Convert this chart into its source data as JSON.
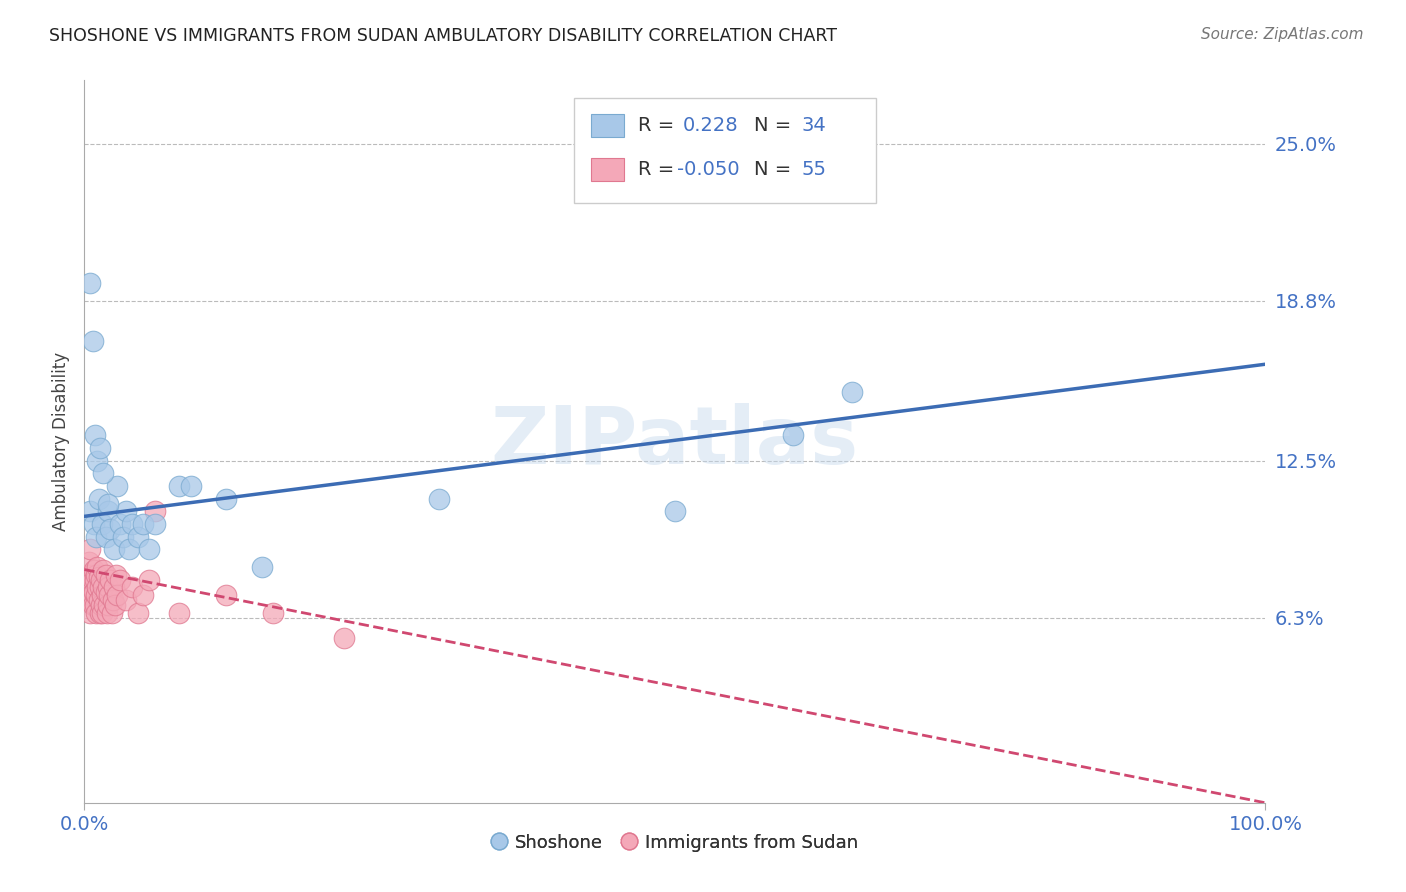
{
  "title": "SHOSHONE VS IMMIGRANTS FROM SUDAN AMBULATORY DISABILITY CORRELATION CHART",
  "source": "Source: ZipAtlas.com",
  "ylabel": "Ambulatory Disability",
  "r_shoshone": 0.228,
  "n_shoshone": 34,
  "r_sudan": -0.05,
  "n_sudan": 55,
  "ytick_labels": [
    "6.3%",
    "12.5%",
    "18.8%",
    "25.0%"
  ],
  "ytick_values": [
    0.063,
    0.125,
    0.188,
    0.25
  ],
  "xlim": [
    0.0,
    1.0
  ],
  "ylim": [
    -0.01,
    0.275
  ],
  "shoshone_color": "#A8C8E8",
  "shoshone_edge_color": "#7AAAD0",
  "sudan_color": "#F4A8B8",
  "sudan_edge_color": "#E07890",
  "shoshone_line_color": "#3C6CB4",
  "sudan_line_color": "#D04870",
  "watermark": "ZIPatlas",
  "shoshone_x": [
    0.005,
    0.008,
    0.01,
    0.012,
    0.015,
    0.018,
    0.02,
    0.022,
    0.025,
    0.028,
    0.03,
    0.033,
    0.035,
    0.038,
    0.04,
    0.045,
    0.05,
    0.055,
    0.06,
    0.08,
    0.09,
    0.12,
    0.15,
    0.3,
    0.5,
    0.6,
    0.65,
    0.005,
    0.007,
    0.009,
    0.011,
    0.013,
    0.016,
    0.02
  ],
  "shoshone_y": [
    0.105,
    0.1,
    0.095,
    0.11,
    0.1,
    0.095,
    0.105,
    0.098,
    0.09,
    0.115,
    0.1,
    0.095,
    0.105,
    0.09,
    0.1,
    0.095,
    0.1,
    0.09,
    0.1,
    0.115,
    0.115,
    0.11,
    0.083,
    0.11,
    0.105,
    0.135,
    0.152,
    0.195,
    0.172,
    0.135,
    0.125,
    0.13,
    0.12,
    0.108
  ],
  "sudan_x": [
    0.001,
    0.002,
    0.003,
    0.004,
    0.005,
    0.005,
    0.005,
    0.006,
    0.006,
    0.007,
    0.007,
    0.008,
    0.008,
    0.009,
    0.009,
    0.01,
    0.01,
    0.01,
    0.011,
    0.011,
    0.012,
    0.012,
    0.013,
    0.013,
    0.014,
    0.014,
    0.015,
    0.015,
    0.016,
    0.016,
    0.017,
    0.018,
    0.018,
    0.019,
    0.02,
    0.02,
    0.021,
    0.022,
    0.023,
    0.024,
    0.025,
    0.026,
    0.027,
    0.028,
    0.03,
    0.035,
    0.04,
    0.045,
    0.05,
    0.055,
    0.06,
    0.08,
    0.12,
    0.16,
    0.22
  ],
  "sudan_y": [
    0.075,
    0.08,
    0.07,
    0.085,
    0.075,
    0.065,
    0.09,
    0.072,
    0.08,
    0.068,
    0.078,
    0.073,
    0.082,
    0.068,
    0.078,
    0.072,
    0.08,
    0.065,
    0.075,
    0.083,
    0.07,
    0.079,
    0.065,
    0.075,
    0.068,
    0.078,
    0.072,
    0.065,
    0.075,
    0.082,
    0.068,
    0.073,
    0.08,
    0.065,
    0.075,
    0.068,
    0.072,
    0.078,
    0.065,
    0.07,
    0.075,
    0.068,
    0.08,
    0.072,
    0.078,
    0.07,
    0.075,
    0.065,
    0.072,
    0.078,
    0.105,
    0.065,
    0.072,
    0.065,
    0.055
  ],
  "shoshone_line_x0": 0.0,
  "shoshone_line_x1": 1.0,
  "shoshone_line_y0": 0.103,
  "shoshone_line_y1": 0.163,
  "sudan_line_x0": 0.0,
  "sudan_line_x1": 1.0,
  "sudan_line_y0": 0.082,
  "sudan_line_y1": -0.01
}
